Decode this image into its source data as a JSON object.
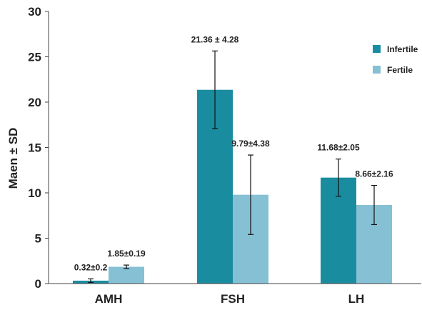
{
  "chart_data": {
    "type": "bar",
    "title": "",
    "xlabel": "",
    "ylabel": "Maen ± SD",
    "ylim": [
      0,
      30
    ],
    "yticks": [
      "0",
      "5",
      "10",
      "15",
      "20",
      "25",
      "30"
    ],
    "grid": false,
    "legend_position": "top-right",
    "categories": [
      "AMH",
      "FSH",
      "LH"
    ],
    "series": [
      {
        "name": "Infertile",
        "color": "#1a8ca0",
        "values": [
          0.32,
          21.36,
          11.68
        ],
        "errors": [
          0.2,
          4.28,
          2.05
        ],
        "labels": [
          "0.32±0.2",
          "21.36 ± 4.28",
          "11.68±2.05"
        ]
      },
      {
        "name": "Fertile",
        "color": "#85c0d4",
        "values": [
          1.85,
          9.79,
          8.66
        ],
        "errors": [
          0.19,
          4.38,
          2.16
        ],
        "labels": [
          "1.85±0.19",
          "9.79±4.38",
          "8.66±2.16"
        ]
      }
    ]
  }
}
